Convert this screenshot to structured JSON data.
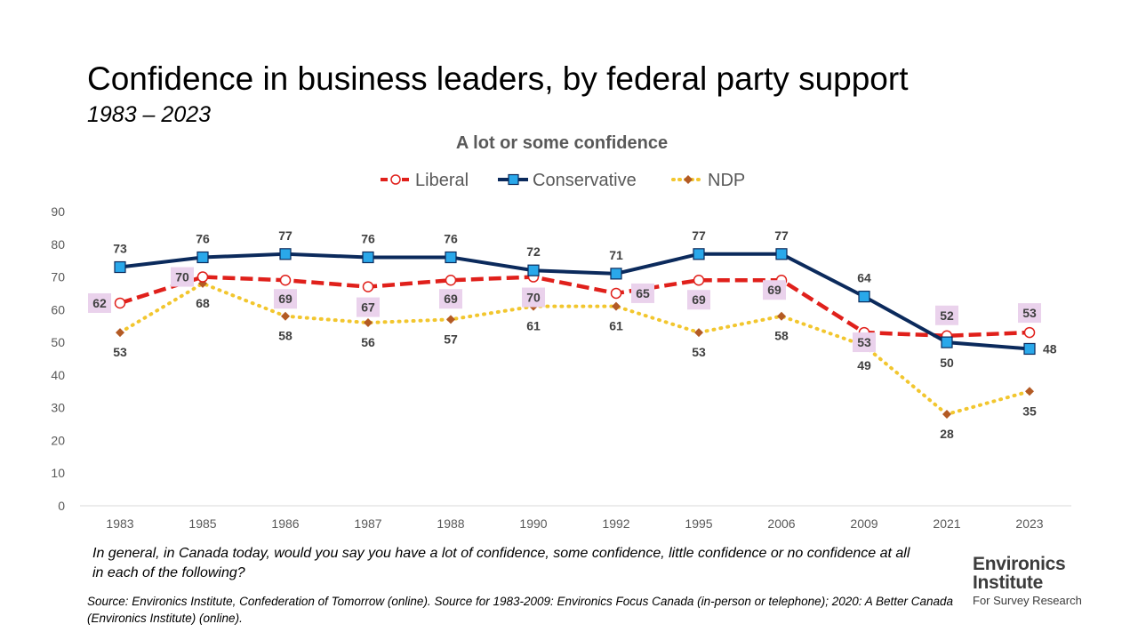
{
  "title": "Confidence in business leaders, by federal party support",
  "subtitle": "1983 – 2023",
  "question": "In general, in Canada today, would you say you have a lot of confidence, some confidence, little confidence or no confidence at all in each of the following?",
  "source": "Source: Environics Institute, Confederation of Tomorrow (online). Source for 1983-2009: Environics Focus Canada (in-person or telephone); 2020: A Better Canada (Environics Institute) (online).",
  "logo": {
    "line1": "Environics",
    "line2": "Institute",
    "line3": "For Survey Research"
  },
  "chart_data": {
    "type": "line",
    "title": "A lot or some confidence",
    "categories": [
      "1983",
      "1985",
      "1986",
      "1987",
      "1988",
      "1990",
      "1992",
      "1995",
      "2006",
      "2009",
      "2021",
      "2023"
    ],
    "ylim": [
      0,
      90
    ],
    "yticks": [
      0,
      10,
      20,
      30,
      40,
      50,
      60,
      70,
      80,
      90
    ],
    "grid": false,
    "legend": "top-center",
    "series": [
      {
        "name": "Liberal",
        "values": [
          62,
          70,
          69,
          67,
          69,
          70,
          65,
          69,
          69,
          53,
          52,
          53
        ],
        "color": "#e0201b"
      },
      {
        "name": "Conservative",
        "values": [
          73,
          76,
          77,
          76,
          76,
          72,
          71,
          77,
          77,
          64,
          50,
          48
        ],
        "color": "#0b2a5c"
      },
      {
        "name": "NDP",
        "values": [
          53,
          68,
          58,
          56,
          57,
          61,
          61,
          53,
          58,
          49,
          28,
          35
        ],
        "color": "#f2c62e"
      }
    ],
    "marker_colors": {
      "liberal_fill": "#ffffff",
      "conservative_fill": "#2aa8ea",
      "ndp_marker": "#b35a24",
      "label_highlight": "#ead2ec"
    }
  }
}
